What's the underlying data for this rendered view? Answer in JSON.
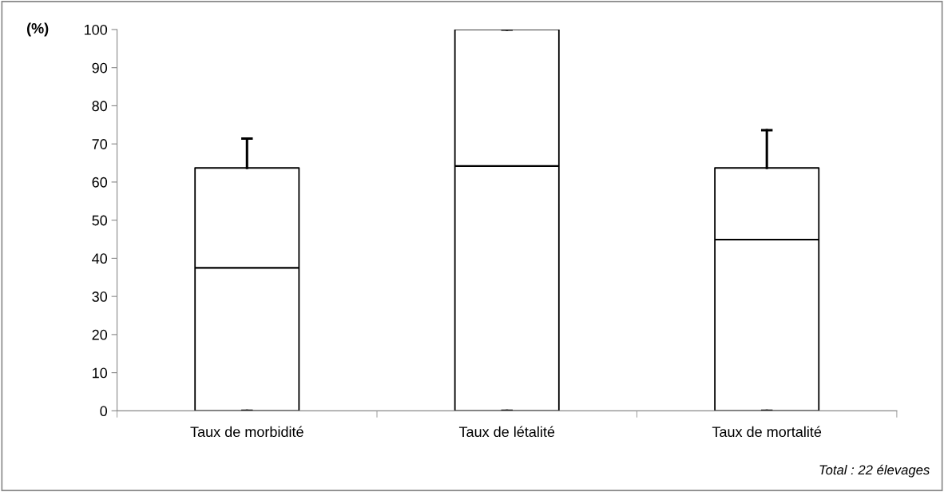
{
  "chart_data": {
    "type": "box",
    "ylabel": "(%)",
    "categories": [
      "Taux de morbidité",
      "Taux de létalité",
      "Taux de mortalité"
    ],
    "boxes": [
      {
        "low": 0,
        "q1": 0,
        "median": 37.5,
        "q3": 63.7,
        "high": 71.4
      },
      {
        "low": 0,
        "q1": 0,
        "median": 64.2,
        "q3": 100,
        "high": 100
      },
      {
        "low": 0,
        "q1": 0,
        "median": 44.9,
        "q3": 63.7,
        "high": 73.6
      }
    ],
    "ylim": [
      0,
      100
    ],
    "yticks": [
      0,
      10,
      20,
      30,
      40,
      50,
      60,
      70,
      80,
      90,
      100
    ],
    "grid": false,
    "legend": false,
    "annotations": [
      "Total : 22 élevages"
    ]
  }
}
